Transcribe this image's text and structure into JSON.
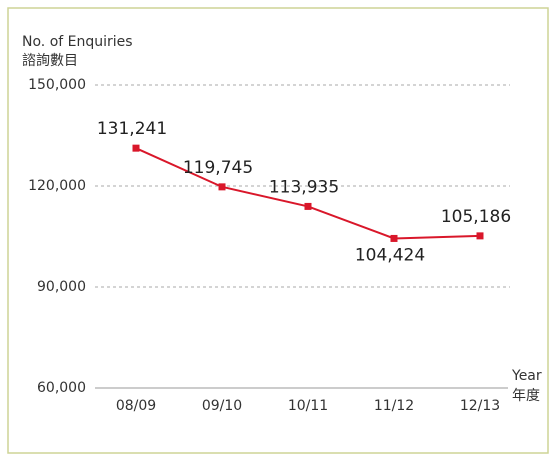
{
  "chart_data": {
    "type": "line",
    "ylabel": [
      "No. of Enquiries",
      "諮詢數目"
    ],
    "xlabel": [
      "Year",
      "年度"
    ],
    "categories": [
      "08/09",
      "09/10",
      "10/11",
      "11/12",
      "12/13"
    ],
    "series": [
      {
        "name": "No. of Enquiries",
        "color": "#d9172a",
        "values": [
          131241,
          119745,
          113935,
          104424,
          105186
        ],
        "value_labels": [
          "131,241",
          "119,745",
          "113,935",
          "104,424",
          "105,186"
        ]
      }
    ],
    "ylim": [
      60000,
      150000
    ],
    "yticks": [
      {
        "value": 60000,
        "label": "60,000"
      },
      {
        "value": 90000,
        "label": "90,000"
      },
      {
        "value": 120000,
        "label": "120,000"
      },
      {
        "value": 150000,
        "label": "150,000"
      }
    ],
    "grid": true
  }
}
